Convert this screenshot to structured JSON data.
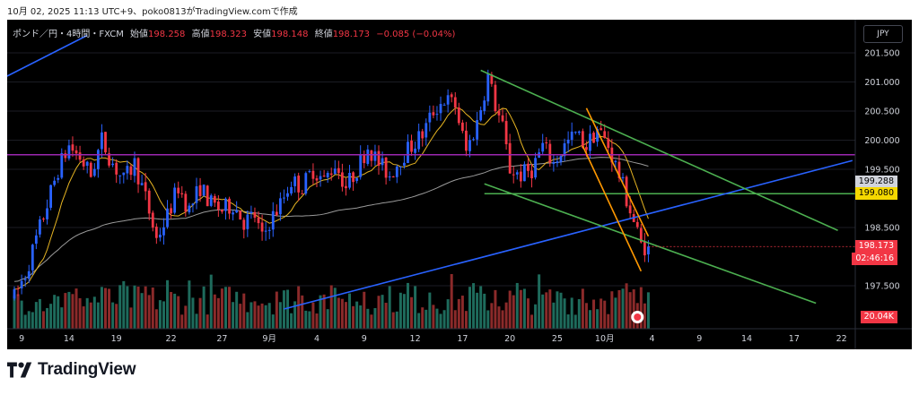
{
  "header": {
    "text": "10月 02, 2025 11:13 UTC+9、poko0813がTradingView.comで作成"
  },
  "info": {
    "symbol": "ポンド／円・4時間・FXCM",
    "open_label": "始値",
    "open": "198.258",
    "high_label": "高値",
    "high": "198.323",
    "low_label": "安値",
    "low": "198.148",
    "close_label": "終値",
    "close": "198.173",
    "change": "−0.085 (−0.04%)"
  },
  "currency_button": "JPY",
  "footer": {
    "brand": "TradingView"
  },
  "price_tags": {
    "sma200": {
      "text": "199.288",
      "value": 199.288,
      "bg": "#d1d4dc",
      "fg": "#000000"
    },
    "hline": {
      "text": "199.080",
      "value": 199.08,
      "bg": "#f5d800",
      "fg": "#000000"
    },
    "close": {
      "text": "198.173",
      "value": 198.173,
      "bg": "#f23645",
      "fg": "#ffffff"
    },
    "countdown": {
      "text": "02:46:16",
      "value": 198.03,
      "bg": "#f23645",
      "fg": "#ffffff"
    },
    "volume": {
      "text": "20.04K",
      "bg": "#f23645",
      "fg": "#ffffff"
    }
  },
  "colors": {
    "up": "#2962ff",
    "down": "#f23645",
    "vol_up": "#1e6b5c",
    "vol_down": "#8b2a2a",
    "background": "#000000",
    "text": "#d1d4dc"
  },
  "chart_data": {
    "type": "candlestick",
    "timeframe": "4h",
    "ylim": [
      197.1,
      201.9
    ],
    "y_ticks": [
      201.5,
      201.0,
      200.5,
      200.0,
      199.5,
      198.5,
      197.5
    ],
    "y_tick_labels": [
      "201.500",
      "201.000",
      "200.500",
      "200.000",
      "199.500",
      "198.500",
      "197.500"
    ],
    "x_range": [
      0,
      214
    ],
    "x_ticks": [
      {
        "label": "9",
        "x": 2
      },
      {
        "label": "14",
        "x": 15
      },
      {
        "label": "19",
        "x": 28
      },
      {
        "label": "22",
        "x": 43
      },
      {
        "label": "27",
        "x": 57
      },
      {
        "label": "9月",
        "x": 70
      },
      {
        "label": "4",
        "x": 83
      },
      {
        "label": "9",
        "x": 96
      },
      {
        "label": "12",
        "x": 110
      },
      {
        "label": "17",
        "x": 123
      },
      {
        "label": "20",
        "x": 136
      },
      {
        "label": "25",
        "x": 149
      },
      {
        "label": "10月",
        "x": 162
      },
      {
        "label": "4",
        "x": 175
      },
      {
        "label": "9",
        "x": 188
      },
      {
        "label": "14",
        "x": 201
      },
      {
        "label": "17",
        "x": 214
      },
      {
        "label": "22",
        "x": 227
      }
    ],
    "price_anchors": [
      [
        0,
        197.3
      ],
      [
        3,
        197.7
      ],
      [
        6,
        198.3
      ],
      [
        9,
        198.9
      ],
      [
        12,
        199.5
      ],
      [
        15,
        199.9
      ],
      [
        18,
        199.7
      ],
      [
        21,
        199.4
      ],
      [
        24,
        200.0
      ],
      [
        27,
        199.6
      ],
      [
        30,
        199.3
      ],
      [
        33,
        199.6
      ],
      [
        36,
        199.0
      ],
      [
        39,
        198.3
      ],
      [
        42,
        198.7
      ],
      [
        45,
        199.2
      ],
      [
        48,
        198.8
      ],
      [
        51,
        199.2
      ],
      [
        54,
        198.9
      ],
      [
        57,
        198.8
      ],
      [
        60,
        198.9
      ],
      [
        63,
        198.6
      ],
      [
        66,
        198.7
      ],
      [
        68,
        198.3
      ],
      [
        70,
        198.6
      ],
      [
        73,
        198.9
      ],
      [
        76,
        199.3
      ],
      [
        79,
        199.2
      ],
      [
        82,
        199.5
      ],
      [
        85,
        199.3
      ],
      [
        88,
        199.6
      ],
      [
        91,
        199.2
      ],
      [
        94,
        199.5
      ],
      [
        97,
        199.9
      ],
      [
        100,
        199.6
      ],
      [
        103,
        199.4
      ],
      [
        106,
        199.7
      ],
      [
        109,
        199.9
      ],
      [
        112,
        200.1
      ],
      [
        115,
        200.5
      ],
      [
        118,
        200.7
      ],
      [
        121,
        200.6
      ],
      [
        124,
        199.8
      ],
      [
        127,
        200.3
      ],
      [
        130,
        201.1
      ],
      [
        132,
        200.6
      ],
      [
        134,
        200.2
      ],
      [
        136,
        199.5
      ],
      [
        139,
        199.4
      ],
      [
        142,
        199.5
      ],
      [
        145,
        199.9
      ],
      [
        148,
        199.6
      ],
      [
        151,
        199.9
      ],
      [
        154,
        200.1
      ],
      [
        157,
        199.9
      ],
      [
        160,
        200.2
      ],
      [
        163,
        199.9
      ],
      [
        166,
        199.4
      ],
      [
        169,
        198.8
      ],
      [
        172,
        198.2
      ],
      [
        174,
        198.17
      ]
    ],
    "overlays": {
      "ema_short_color": "#e6b422",
      "sma_long_color": "#9a9a9a",
      "horizontal_lines": [
        {
          "y": 199.75,
          "color": "#9c27b0"
        },
        {
          "y": 199.08,
          "color": "#4caf50"
        }
      ],
      "trendlines": [
        {
          "color": "#2962ff",
          "p1": [
            -2,
            201.1
          ],
          "p2": [
            20,
            201.8
          ]
        },
        {
          "color": "#2962ff",
          "p1": [
            74,
            197.1
          ],
          "p2": [
            230,
            199.65
          ]
        },
        {
          "color": "#4caf50",
          "p1": [
            128,
            201.2
          ],
          "p2": [
            226,
            198.45
          ]
        },
        {
          "color": "#4caf50",
          "p1": [
            129,
            199.25
          ],
          "p2": [
            220,
            197.2
          ]
        },
        {
          "color": "#ff9800",
          "p1": [
            157,
            200.55
          ],
          "p2": [
            174,
            198.35
          ]
        },
        {
          "color": "#ff9800",
          "p1": [
            156,
            199.9
          ],
          "p2": [
            172,
            197.75
          ]
        }
      ]
    }
  }
}
